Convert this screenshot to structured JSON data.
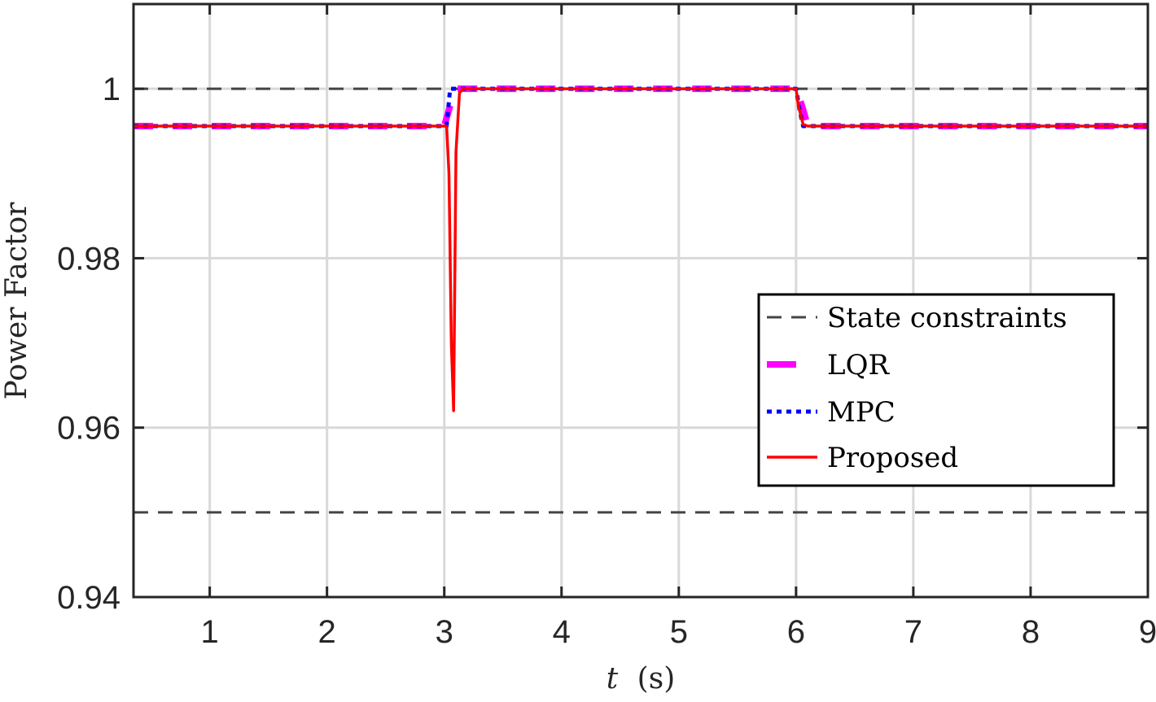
{
  "chart_data": {
    "type": "line",
    "xlabel_italic": "t",
    "xlabel_unit": "(s)",
    "ylabel": "Power Factor",
    "xlim": [
      0.35,
      9.0
    ],
    "ylim": [
      0.94,
      1.01
    ],
    "xticks": [
      1,
      2,
      3,
      4,
      5,
      6,
      7,
      8,
      9
    ],
    "yticks": [
      0.94,
      0.96,
      0.98,
      1
    ],
    "ytick_labels": [
      "0.94",
      "0.96",
      "0.98",
      "1"
    ],
    "grid": true,
    "legend_position": "center-right",
    "constraints": {
      "upper": 1.0,
      "lower": 0.95
    },
    "series": [
      {
        "name": "State constraints",
        "style": "dashed",
        "color": "#444444"
      },
      {
        "name": "LQR",
        "style": "dash-thick",
        "color": "#ff00ff",
        "x": [
          0.35,
          3.0,
          3.05,
          3.1,
          3.15,
          6.0,
          6.05,
          6.1,
          9.0
        ],
        "y": [
          0.9956,
          0.9956,
          0.998,
          1.0,
          1.0,
          1.0,
          0.998,
          0.9956,
          0.9956
        ]
      },
      {
        "name": "MPC",
        "style": "dotted",
        "color": "#0000ff",
        "x": [
          0.35,
          3.02,
          3.05,
          3.07,
          6.0,
          6.03,
          6.06,
          9.0
        ],
        "y": [
          0.9956,
          0.9956,
          1.0,
          1.0,
          1.0,
          0.9975,
          0.9956,
          0.9956
        ],
        "x_unused": []
      },
      {
        "name": "Proposed",
        "style": "solid",
        "color": "#ff0000",
        "x": [
          0.35,
          3.02,
          3.04,
          3.06,
          3.08,
          3.1,
          3.13,
          3.16,
          3.2,
          6.0,
          6.02,
          6.06,
          6.1,
          9.0
        ],
        "y": [
          0.9956,
          0.9956,
          0.99,
          0.97,
          0.962,
          0.9925,
          0.9995,
          1.0,
          1.0,
          1.0,
          0.998,
          0.9958,
          0.9956,
          0.9956
        ]
      }
    ]
  }
}
